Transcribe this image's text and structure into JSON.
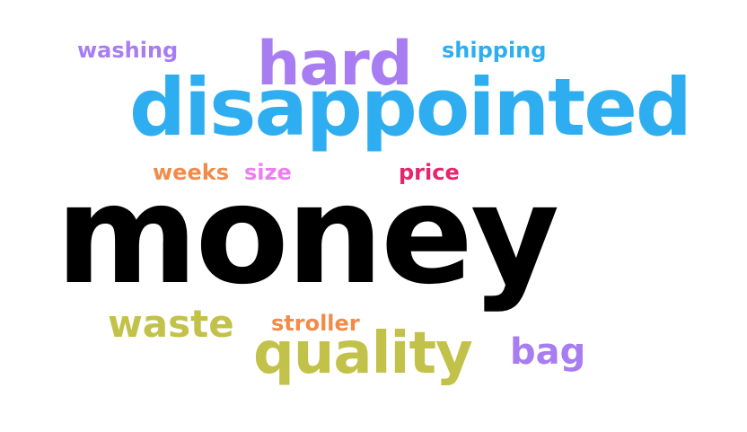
{
  "words": {
    "money": {
      "text": "money",
      "color": "#000000"
    },
    "disappointed": {
      "text": "disappointed",
      "color": "#2eaef0"
    },
    "hard": {
      "text": "hard",
      "color": "#a97df2"
    },
    "quality": {
      "text": "quality",
      "color": "#c2c24a"
    },
    "waste": {
      "text": "waste",
      "color": "#c2c24a"
    },
    "bag": {
      "text": "bag",
      "color": "#a97df2"
    },
    "washing": {
      "text": "washing",
      "color": "#a97df2"
    },
    "shipping": {
      "text": "shipping",
      "color": "#2eaef0"
    },
    "weeks": {
      "text": "weeks",
      "color": "#f28b4a"
    },
    "size": {
      "text": "size",
      "color": "#ee7ef0"
    },
    "price": {
      "text": "price",
      "color": "#e5256e"
    },
    "stroller": {
      "text": "stroller",
      "color": "#f28b4a"
    }
  }
}
